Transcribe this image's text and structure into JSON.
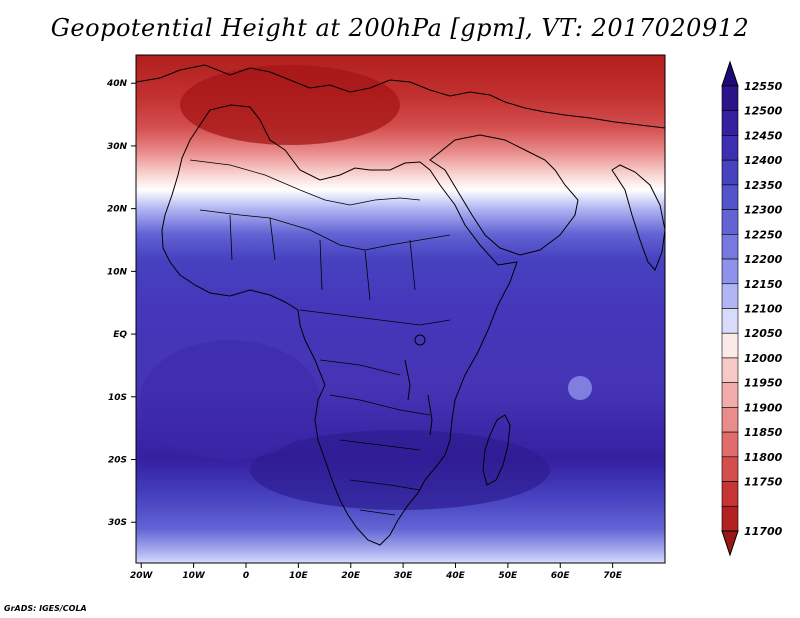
{
  "chart_data": {
    "type": "heatmap",
    "title": "Geopotential Height at 200hPa [gpm], VT: 2017020912",
    "x_tick_labels": [
      "20W",
      "10W",
      "0",
      "10E",
      "20E",
      "30E",
      "40E",
      "50E",
      "60E",
      "70E"
    ],
    "x_tick_values": [
      -20,
      -10,
      0,
      10,
      20,
      30,
      40,
      50,
      60,
      70
    ],
    "y_tick_labels": [
      "40N",
      "30N",
      "20N",
      "10N",
      "EQ",
      "10S",
      "20S",
      "30S"
    ],
    "y_tick_values": [
      40,
      30,
      20,
      10,
      0,
      -10,
      -20,
      -30
    ],
    "xlim": [
      -21,
      80
    ],
    "ylim": [
      -36.5,
      44.5
    ],
    "colorbar": {
      "levels": [
        12550,
        12500,
        12450,
        12400,
        12350,
        12300,
        12250,
        12200,
        12150,
        12100,
        12050,
        12000,
        11950,
        11900,
        11850,
        11800,
        11750,
        11700
      ],
      "colors": [
        "#2a148a",
        "#3520a0",
        "#3c2fb2",
        "#4742c0",
        "#5454ca",
        "#6264d4",
        "#7779e0",
        "#8e92ea",
        "#b1b6f2",
        "#d8dcfa",
        "#fbeae8",
        "#f7cac8",
        "#f1acab",
        "#e98c8c",
        "#e06c6c",
        "#d44e4e",
        "#c63434",
        "#b22222"
      ],
      "top_color": "#1d0a78",
      "bottom_color": "#9b1717"
    },
    "field_bands": [
      {
        "lat": 44.5,
        "color": "#b01e1e"
      },
      {
        "lat": 38,
        "color": "#c23030"
      },
      {
        "lat": 33,
        "color": "#d44e4e"
      },
      {
        "lat": 29,
        "color": "#e98c8c"
      },
      {
        "lat": 26,
        "color": "#f7cac8"
      },
      {
        "lat": 23,
        "color": "#ffffff"
      },
      {
        "lat": 20,
        "color": "#b1b6f2"
      },
      {
        "lat": 16,
        "color": "#6264d4"
      },
      {
        "lat": 12,
        "color": "#4742c0"
      },
      {
        "lat": 4,
        "color": "#4536bb"
      },
      {
        "lat": -8,
        "color": "#4535b5"
      },
      {
        "lat": -20,
        "color": "#3520a0"
      },
      {
        "lat": -26,
        "color": "#4742c0"
      },
      {
        "lat": -31,
        "color": "#6264d4"
      },
      {
        "lat": -35,
        "color": "#b1b6f2"
      },
      {
        "lat": -36.5,
        "color": "#d8dcfa"
      }
    ]
  },
  "footer": "GrADS: IGES/COLA"
}
